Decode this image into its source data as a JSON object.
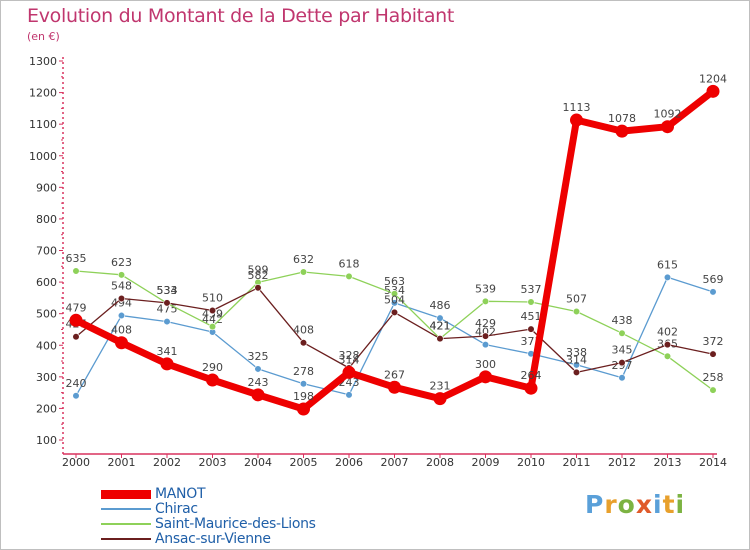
{
  "header": {
    "title": "Evolution du Montant de la Dette par Habitant",
    "subtitle": "(en €)"
  },
  "logo": {
    "letters": [
      "P",
      "r",
      "o",
      "x",
      "i",
      "t",
      "i"
    ],
    "colors": [
      "#5aa0d9",
      "#e8a02c",
      "#7cb342",
      "#e05a2a",
      "#5aa0d9",
      "#e8a02c",
      "#7cb342"
    ]
  },
  "chart_data": {
    "type": "line",
    "title": "Evolution du Montant de la Dette par Habitant",
    "subtitle": "(en €)",
    "xlabel": "",
    "ylabel": "",
    "x": [
      "2000",
      "2001",
      "2002",
      "2003",
      "2004",
      "2005",
      "2006",
      "2007",
      "2008",
      "2009",
      "2010",
      "2011",
      "2012",
      "2013",
      "2014"
    ],
    "ylim": [
      100,
      1300
    ],
    "yticks": [
      100,
      200,
      300,
      400,
      500,
      600,
      700,
      800,
      900,
      1000,
      1100,
      1200,
      1300
    ],
    "grid": false,
    "legend_position": "bottom-left",
    "series": [
      {
        "name": "Chirac",
        "color": "#5b9bd0",
        "values": [
          240,
          494,
          475,
          442,
          325,
          278,
          243,
          534,
          486,
          402,
          373,
          338,
          297,
          615,
          569
        ]
      },
      {
        "name": "Saint-Maurice-des-Lions",
        "color": "#8ed159",
        "values": [
          635,
          623,
          533,
          459,
          599,
          632,
          618,
          563,
          421,
          539,
          537,
          507,
          438,
          365,
          258
        ]
      },
      {
        "name": "Ansac-sur-Vienne",
        "color": "#6b1f1f",
        "values": [
          427,
          548,
          534,
          510,
          582,
          408,
          328,
          504,
          421,
          429,
          451,
          314,
          345,
          402,
          372
        ]
      },
      {
        "name": "MANOT",
        "color": "#ee0000",
        "values": [
          479,
          408,
          341,
          290,
          243,
          198,
          314,
          267,
          231,
          300,
          264,
          1113,
          1078,
          1092,
          1204
        ]
      }
    ],
    "legend_order": [
      "MANOT",
      "Chirac",
      "Saint-Maurice-des-Lions",
      "Ansac-sur-Vienne"
    ]
  }
}
